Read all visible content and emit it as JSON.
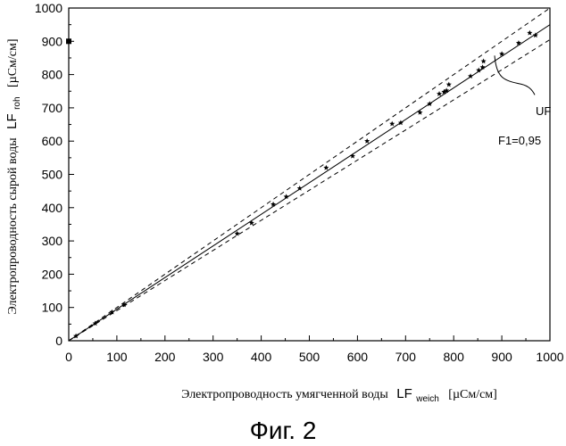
{
  "figure": {
    "caption": "Фиг. 2"
  },
  "chart_data": {
    "type": "scatter",
    "xlabel": {
      "text": "Электропроводность умягченной воды",
      "symbol": "LF",
      "subscript": "weich",
      "unit": "[µСм/см]"
    },
    "ylabel": {
      "text": "Электропроводность сырой воды",
      "symbol": "LF",
      "subscript": "roh",
      "unit": "[µСм/см]"
    },
    "xlim": [
      0,
      1000
    ],
    "ylim": [
      0,
      1000
    ],
    "xticks": [
      0,
      100,
      200,
      300,
      400,
      500,
      600,
      700,
      800,
      900,
      1000
    ],
    "yticks": [
      0,
      100,
      200,
      300,
      400,
      500,
      600,
      700,
      800,
      900,
      1000
    ],
    "grid": false,
    "series": [
      {
        "marker": "star",
        "points": [
          [
            15,
            14
          ],
          [
            55,
            52
          ],
          [
            90,
            86
          ],
          [
            115,
            108
          ],
          [
            350,
            322
          ],
          [
            380,
            354
          ],
          [
            425,
            410
          ],
          [
            452,
            433
          ],
          [
            480,
            458
          ],
          [
            535,
            520
          ],
          [
            590,
            555
          ],
          [
            620,
            600
          ],
          [
            672,
            652
          ],
          [
            690,
            655
          ],
          [
            730,
            686
          ],
          [
            750,
            712
          ],
          [
            770,
            742
          ],
          [
            780,
            748
          ],
          [
            785,
            752
          ],
          [
            790,
            770
          ],
          [
            835,
            795
          ],
          [
            852,
            813
          ],
          [
            860,
            822
          ],
          [
            862,
            840
          ],
          [
            900,
            862
          ],
          [
            935,
            895
          ],
          [
            958,
            925
          ],
          [
            970,
            918
          ]
        ]
      },
      {
        "marker": "square",
        "points": [
          [
            0,
            900
          ]
        ]
      }
    ],
    "lines": [
      {
        "style": "solid",
        "x": [
          0,
          1000
        ],
        "y": [
          0,
          950
        ]
      },
      {
        "style": "dashed",
        "x": [
          0,
          1000
        ],
        "y": [
          0,
          1000
        ]
      },
      {
        "style": "dashed",
        "x": [
          0,
          1000
        ],
        "y": [
          0,
          905
        ]
      }
    ],
    "annotations": [
      {
        "text": "UF",
        "points_to": [
          885,
          857
        ]
      },
      {
        "text": "F1=0,95"
      }
    ]
  }
}
